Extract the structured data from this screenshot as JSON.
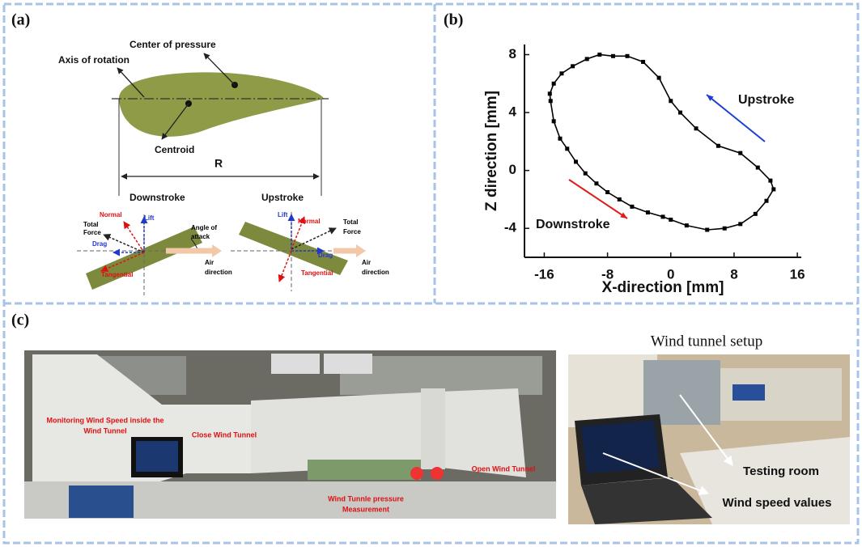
{
  "panel_a": {
    "label": "(a)",
    "center_of_pressure": "Center of pressure",
    "axis_of_rotation": "Axis of rotation",
    "centroid": "Centroid",
    "span": "R",
    "downstroke": "Downstroke",
    "upstroke": "Upstroke",
    "normal": "Normal",
    "lift": "Lift",
    "total_force": [
      "Total",
      "Force"
    ],
    "drag": "Drag",
    "tangential": "Tangential",
    "angle_of_attack": [
      "Angle of",
      "attack"
    ],
    "air_direction": [
      "Air",
      "direction"
    ]
  },
  "chart_data": {
    "type": "line",
    "panel_label": "(b)",
    "x_label": "X-direction [mm]",
    "y_label": "Z direction [mm]",
    "xlim": [
      -18.5,
      16.5
    ],
    "ylim": [
      -6,
      8.7
    ],
    "xticks": [
      -16,
      -8,
      0,
      8,
      16
    ],
    "yticks": [
      -4,
      0,
      4,
      8
    ],
    "x": [
      -7.3,
      -9.0,
      -10.6,
      -12.4,
      -13.8,
      -14.8,
      -15.3,
      -15.2,
      -14.8,
      -14.0,
      -13.1,
      -12.0,
      -10.8,
      -9.4,
      -8.0,
      -6.5,
      -4.9,
      -2.9,
      -1.0,
      0.0,
      2.0,
      4.6,
      6.8,
      8.8,
      10.7,
      12.1,
      13.0,
      12.6,
      11.0,
      8.8,
      6.0,
      3.2,
      1.2,
      0.0,
      -1.5,
      -3.5,
      -5.5
    ],
    "series": [
      {
        "color": "#000000",
        "values": [
          7.9,
          8.0,
          7.7,
          7.2,
          6.7,
          6.0,
          5.3,
          4.8,
          3.4,
          2.2,
          1.5,
          0.6,
          -0.2,
          -0.9,
          -1.5,
          -2.0,
          -2.5,
          -2.9,
          -3.2,
          -3.4,
          -3.8,
          -4.1,
          -4.0,
          -3.7,
          -3.0,
          -2.1,
          -1.3,
          -0.7,
          0.2,
          1.2,
          1.7,
          2.9,
          4.0,
          4.8,
          6.4,
          7.5,
          7.9
        ]
      }
    ],
    "annotations": [
      {
        "text": "Upstroke",
        "color": "#1c3fd6"
      },
      {
        "text": "Downstroke",
        "color": "#e01b1b"
      }
    ]
  },
  "panel_c": {
    "label": "(c)",
    "setup_title": "Wind tunnel setup",
    "monitoring": [
      "Monitoring Wind Speed inside the",
      "Wind Tunnel"
    ],
    "close_tunnel": "Close Wind Tunnel",
    "open_tunnel": "Open Wind Tunnel",
    "pressure": [
      "Wind Tunnle pressure",
      "Measurement"
    ],
    "testing_room": "Testing  room",
    "wind_speed": "Wind speed values"
  }
}
